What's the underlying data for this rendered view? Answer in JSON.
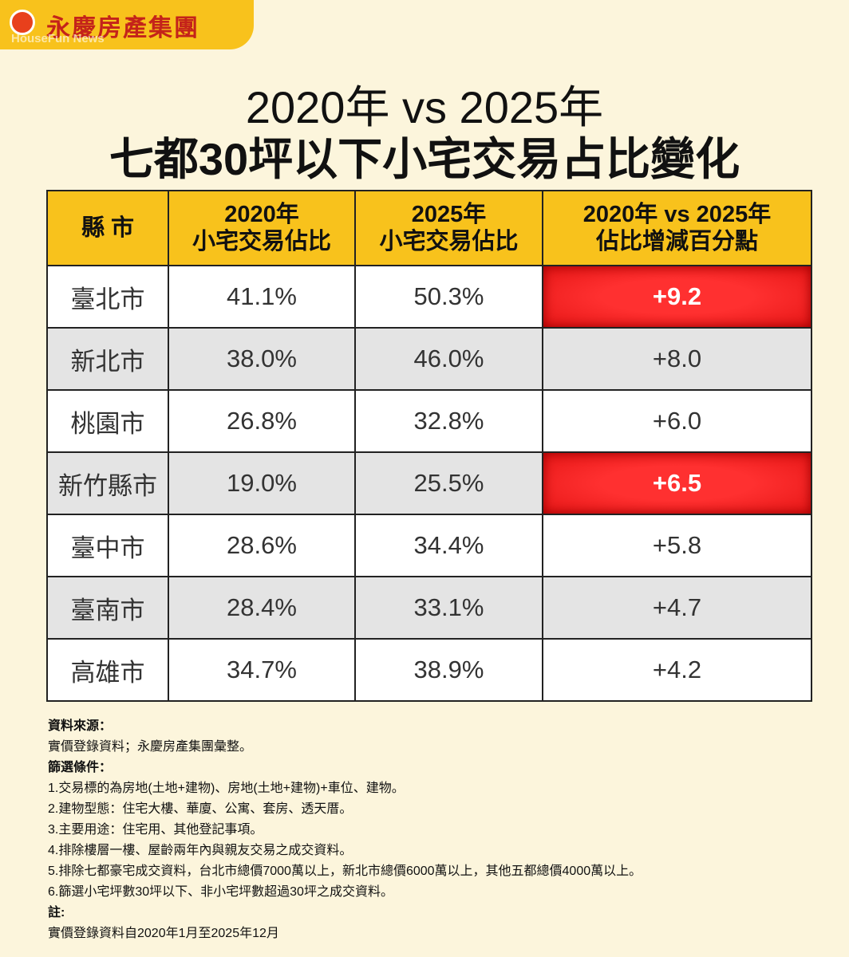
{
  "header": {
    "logo": "永慶房產集團",
    "watermark": "HouseFun News"
  },
  "title": {
    "line1": "2020年 vs 2025年",
    "line2": "七都30坪以下小宅交易占比變化"
  },
  "table": {
    "headers": [
      [
        "縣 市"
      ],
      [
        "2020年",
        "小宅交易佔比"
      ],
      [
        "2025年",
        "小宅交易佔比"
      ],
      [
        "2020年 vs 2025年",
        "佔比增減百分點"
      ]
    ],
    "rows": [
      [
        "臺北市",
        "41.1%",
        "50.3%",
        "+9.2"
      ],
      [
        "新北市",
        "38.0%",
        "46.0%",
        "+8.0"
      ],
      [
        "桃園市",
        "26.8%",
        "32.8%",
        "+6.0"
      ],
      [
        "新竹縣市",
        "19.0%",
        "25.5%",
        "+6.5"
      ],
      [
        "臺中市",
        "28.6%",
        "34.4%",
        "+5.8"
      ],
      [
        "臺南市",
        "28.4%",
        "33.1%",
        "+4.7"
      ],
      [
        "高雄市",
        "34.7%",
        "38.9%",
        "+4.2"
      ]
    ],
    "highlighted_rows": [
      0,
      3
    ]
  },
  "notes": [
    {
      "heading": "資料來源：",
      "lines": [
        "實價登錄資料；永慶房產集團彙整。"
      ]
    },
    {
      "heading": "篩選條件：",
      "lines": [
        "1.交易標的為房地(土地+建物)、房地(土地+建物)+車位、建物。",
        "2.建物型態：住宅大樓、華廈、公寓、套房、透天厝。",
        "3.主要用途：住宅用、其他登記事項。",
        "4.排除樓層一樓、屋齡兩年內與親友交易之成交資料。",
        "5.排除七都豪宅成交資料，台北市總價7000萬以上，新北市總價6000萬以上，其他五都總價4000萬以上。",
        "6.篩選小宅坪數30坪以下、非小宅坪數超過30坪之成交資料。"
      ]
    },
    {
      "heading": "註:",
      "lines": [
        "實價登錄資料自2020年1月至2025年12月"
      ]
    }
  ]
}
